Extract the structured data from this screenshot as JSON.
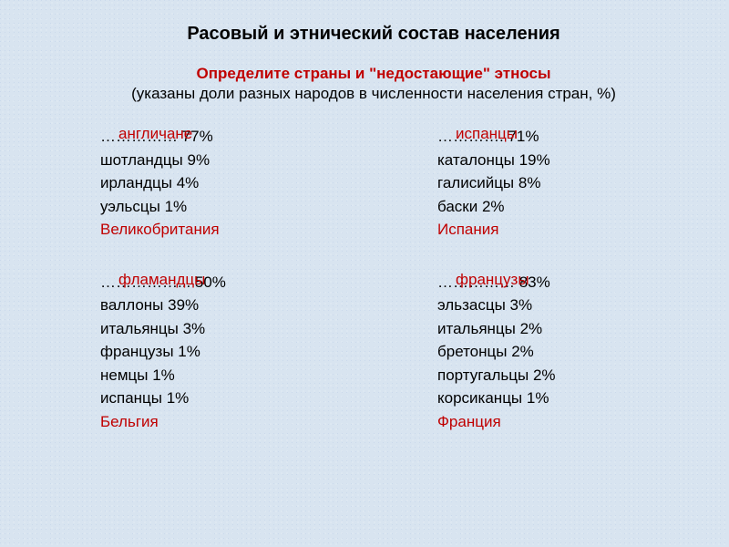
{
  "title": "Расовый и этнический состав населения",
  "subtitle_red": "Определите страны и \"недостающие\" этносы",
  "subtitle_black": "(указаны доли разных народов в численности населения стран, %)",
  "blocks": [
    {
      "answer_top": "англичане",
      "dots_line": "…………… 77%",
      "lines": [
        "шотландцы 9%",
        "ирландцы 4%",
        "уэльсцы 1%"
      ],
      "answer_bottom": "Великобритания"
    },
    {
      "answer_top": "испанцы",
      "dots_line": "…………. 71%",
      "lines": [
        "каталонцы 19%",
        "галисийцы 8%",
        "баски 2%"
      ],
      "answer_bottom": "Испания"
    },
    {
      "answer_top": "фламандцы",
      "dots_line": "……………... 50%",
      "lines": [
        "валлоны 39%",
        "итальянцы 3%",
        "французы 1%",
        "немцы 1%",
        "испанцы 1%"
      ],
      "answer_bottom": "Бельгия"
    },
    {
      "answer_top": "французы",
      "dots_line": "…………… 83%",
      "lines": [
        "эльзасцы 3%",
        "итальянцы 2%",
        "бретонцы 2%",
        "португальцы 2%",
        "корсиканцы 1%"
      ],
      "answer_bottom": "Франция"
    }
  ],
  "colors": {
    "answer": "#c00000",
    "text": "#000000",
    "background": "#d8e4f0"
  },
  "typography": {
    "title_fontsize": 20,
    "subtitle_fontsize": 17,
    "body_fontsize": 17,
    "title_weight": "bold",
    "subtitle_red_weight": "bold"
  }
}
